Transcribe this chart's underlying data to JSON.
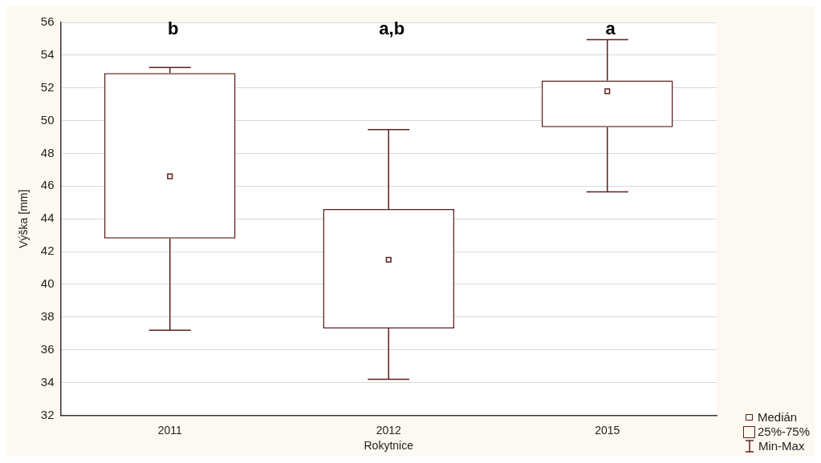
{
  "chart_data": {
    "type": "box",
    "xlabel": "Rokytnice",
    "ylabel": "Výška [mm]",
    "categories": [
      "2011",
      "2012",
      "2015"
    ],
    "boxes": [
      {
        "low": 37.2,
        "q1": 42.8,
        "median": 46.6,
        "q3": 52.9,
        "high": 53.25
      },
      {
        "low": 34.2,
        "q1": 37.3,
        "median": 41.5,
        "q3": 44.6,
        "high": 49.45
      },
      {
        "low": 45.65,
        "q1": 49.6,
        "median": 51.8,
        "q3": 52.45,
        "high": 54.95
      }
    ],
    "color": "#5c1f1f",
    "ylim": [
      32,
      56
    ],
    "yticks": [
      32,
      34,
      36,
      38,
      40,
      42,
      44,
      46,
      48,
      50,
      52,
      54,
      56
    ],
    "grid": "y",
    "annotations": [
      "b",
      "a,b",
      "a",
      "Medián",
      "25%-75%",
      "Min-Max"
    ]
  }
}
